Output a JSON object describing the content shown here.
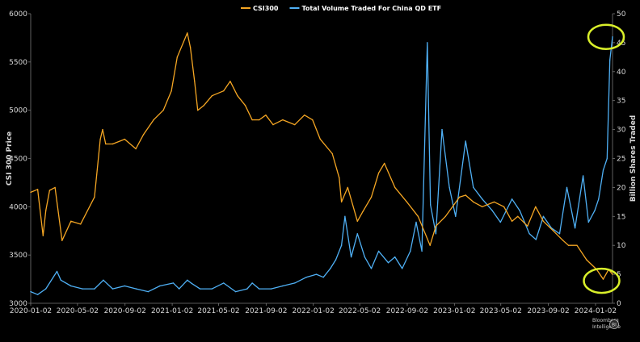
{
  "chart_data": {
    "type": "line",
    "legend": {
      "placement": "top-center",
      "entries": [
        {
          "name": "CSI300",
          "color": "#f5a623"
        },
        {
          "name": "Total Volume Traded For China QD ETF",
          "color": "#4fb0f5"
        }
      ]
    },
    "x_tick_labels": [
      "2020-01-02",
      "2020-05-02",
      "2020-09-02",
      "2021-01-02",
      "2021-05-02",
      "2021-09-02",
      "2022-01-02",
      "2022-05-02",
      "2022-09-02",
      "2023-01-02",
      "2023-05-02",
      "2023-09-02",
      "2024-01-02"
    ],
    "xlim": [
      "2020-01-02",
      "2024-02-15"
    ],
    "y_left": {
      "label": "CSI 300 Price",
      "ticks": [
        3000,
        3500,
        4000,
        4500,
        5000,
        5500,
        6000
      ],
      "lim": [
        3000,
        6000
      ]
    },
    "y_right": {
      "label": "Billion Shares Traded",
      "ticks": [
        0,
        5,
        10,
        15,
        20,
        25,
        30,
        35,
        40,
        45,
        50
      ],
      "lim": [
        0,
        50
      ]
    },
    "grid": false,
    "series": [
      {
        "name": "CSI300",
        "axis": "left",
        "color": "#f5a623",
        "x": [
          "2020-01-02",
          "2020-01-20",
          "2020-02-03",
          "2020-02-10",
          "2020-02-20",
          "2020-03-05",
          "2020-03-23",
          "2020-04-15",
          "2020-05-10",
          "2020-06-15",
          "2020-06-30",
          "2020-07-06",
          "2020-07-14",
          "2020-08-01",
          "2020-09-01",
          "2020-09-30",
          "2020-10-20",
          "2020-11-15",
          "2020-12-10",
          "2020-12-31",
          "2021-01-15",
          "2021-02-10",
          "2021-02-18",
          "2021-03-01",
          "2021-03-09",
          "2021-03-25",
          "2021-04-15",
          "2021-05-15",
          "2021-06-01",
          "2021-06-20",
          "2021-07-10",
          "2021-07-28",
          "2021-08-15",
          "2021-09-01",
          "2021-09-20",
          "2021-10-15",
          "2021-11-15",
          "2021-12-10",
          "2021-12-31",
          "2022-01-20",
          "2022-02-20",
          "2022-03-10",
          "2022-03-16",
          "2022-04-01",
          "2022-04-26",
          "2022-05-10",
          "2022-06-01",
          "2022-06-20",
          "2022-07-05",
          "2022-08-01",
          "2022-09-01",
          "2022-09-30",
          "2022-10-31",
          "2022-11-15",
          "2022-12-10",
          "2023-01-15",
          "2023-01-31",
          "2023-02-20",
          "2023-03-15",
          "2023-04-15",
          "2023-05-10",
          "2023-05-31",
          "2023-06-15",
          "2023-07-10",
          "2023-07-31",
          "2023-08-20",
          "2023-09-15",
          "2023-10-10",
          "2023-10-24",
          "2023-11-15",
          "2023-12-10",
          "2024-01-05",
          "2024-01-22",
          "2024-02-05",
          "2024-02-15"
        ],
        "values": [
          4150,
          4180,
          3700,
          3960,
          4170,
          4200,
          3650,
          3850,
          3820,
          4100,
          4700,
          4800,
          4650,
          4650,
          4700,
          4600,
          4750,
          4900,
          5000,
          5200,
          5550,
          5800,
          5650,
          5300,
          5000,
          5050,
          5150,
          5200,
          5300,
          5150,
          5050,
          4900,
          4900,
          4950,
          4850,
          4900,
          4850,
          4950,
          4900,
          4700,
          4550,
          4300,
          4050,
          4200,
          3850,
          3950,
          4100,
          4350,
          4450,
          4200,
          4050,
          3900,
          3600,
          3800,
          3900,
          4100,
          4120,
          4050,
          4000,
          4050,
          4000,
          3850,
          3900,
          3800,
          4000,
          3850,
          3750,
          3650,
          3600,
          3600,
          3450,
          3350,
          3250,
          3350,
          3300
        ]
      },
      {
        "name": "Total Volume Traded For China QD ETF",
        "axis": "right",
        "color": "#4fb0f5",
        "x": [
          "2020-01-02",
          "2020-01-20",
          "2020-02-10",
          "2020-03-10",
          "2020-03-20",
          "2020-04-15",
          "2020-05-15",
          "2020-06-15",
          "2020-07-08",
          "2020-08-01",
          "2020-09-01",
          "2020-10-01",
          "2020-11-01",
          "2020-12-01",
          "2021-01-05",
          "2021-01-20",
          "2021-02-10",
          "2021-02-20",
          "2021-03-15",
          "2021-04-15",
          "2021-05-15",
          "2021-06-15",
          "2021-07-15",
          "2021-07-28",
          "2021-08-15",
          "2021-09-15",
          "2021-10-15",
          "2021-11-15",
          "2021-12-15",
          "2022-01-10",
          "2022-01-28",
          "2022-02-15",
          "2022-03-01",
          "2022-03-16",
          "2022-03-25",
          "2022-04-10",
          "2022-04-26",
          "2022-05-15",
          "2022-06-01",
          "2022-06-20",
          "2022-07-15",
          "2022-08-01",
          "2022-08-20",
          "2022-09-10",
          "2022-09-25",
          "2022-10-10",
          "2022-10-24",
          "2022-11-01",
          "2022-11-15",
          "2022-12-01",
          "2022-12-20",
          "2023-01-05",
          "2023-01-31",
          "2023-02-20",
          "2023-03-15",
          "2023-04-10",
          "2023-05-01",
          "2023-05-31",
          "2023-06-20",
          "2023-07-15",
          "2023-08-01",
          "2023-08-20",
          "2023-09-10",
          "2023-10-01",
          "2023-10-20",
          "2023-11-10",
          "2023-12-01",
          "2023-12-15",
          "2023-12-31",
          "2024-01-10",
          "2024-01-22",
          "2024-02-01",
          "2024-02-08",
          "2024-02-15"
        ],
        "values": [
          2,
          1.5,
          2.5,
          5.5,
          4,
          3,
          2.5,
          2.5,
          4,
          2.5,
          3,
          2.5,
          2,
          3,
          3.5,
          2.5,
          4,
          3.5,
          2.5,
          2.5,
          3.5,
          2,
          2.5,
          3.5,
          2.5,
          2.5,
          3,
          3.5,
          4.5,
          5,
          4.5,
          6,
          7.5,
          10,
          15,
          8,
          12,
          8,
          6,
          9,
          7,
          8,
          6,
          9,
          14,
          9,
          45,
          17,
          12,
          30,
          20,
          15,
          28,
          20,
          18,
          16,
          14,
          18,
          16,
          12,
          11,
          15,
          13,
          12,
          20,
          13,
          22,
          14,
          16,
          18,
          23,
          25,
          42,
          46
        ]
      }
    ],
    "annotations": [
      {
        "type": "circle",
        "color": "#d9ef2a",
        "target": "ETF volume peak, 2024-02"
      },
      {
        "type": "circle",
        "color": "#d9ef2a",
        "target": "CSI300 low, 2024-02"
      }
    ]
  }
}
